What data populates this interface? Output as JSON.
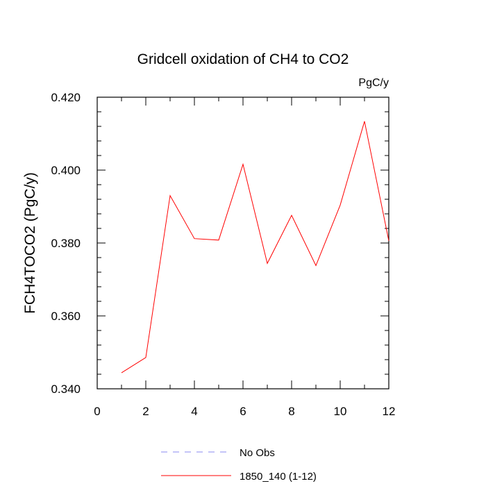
{
  "chart_data": {
    "type": "line",
    "title": "Gridcell oxidation of CH4 to CO2",
    "units_label": "PgC/y",
    "ylabel": "FCH4TOCO2  (PgC/y)",
    "xlabel": "",
    "xlim": [
      0,
      12
    ],
    "ylim": [
      0.34,
      0.42
    ],
    "x_ticks": [
      0,
      2,
      4,
      6,
      8,
      10,
      12
    ],
    "x_tick_labels": [
      "0",
      "2",
      "4",
      "6",
      "8",
      "10",
      "12"
    ],
    "y_ticks": [
      0.34,
      0.36,
      0.38,
      0.4,
      0.42
    ],
    "y_tick_labels": [
      "0.340",
      "0.360",
      "0.380",
      "0.400",
      "0.420"
    ],
    "series": [
      {
        "name": "1850_140 (1-12)",
        "color": "#ff0000",
        "x": [
          1,
          2,
          3,
          4,
          5,
          6,
          7,
          8,
          9,
          10,
          11,
          12
        ],
        "values": [
          0.3444,
          0.3486,
          0.393,
          0.3812,
          0.3808,
          0.4016,
          0.3744,
          0.3876,
          0.3738,
          0.3904,
          0.4134,
          0.3806
        ]
      }
    ],
    "legend": [
      {
        "label": "No Obs",
        "style": "dashed",
        "color": "#8a8af0"
      },
      {
        "label": "1850_140 (1-12)",
        "style": "solid",
        "color": "#ff0000"
      }
    ],
    "legend_position": "bottom"
  }
}
